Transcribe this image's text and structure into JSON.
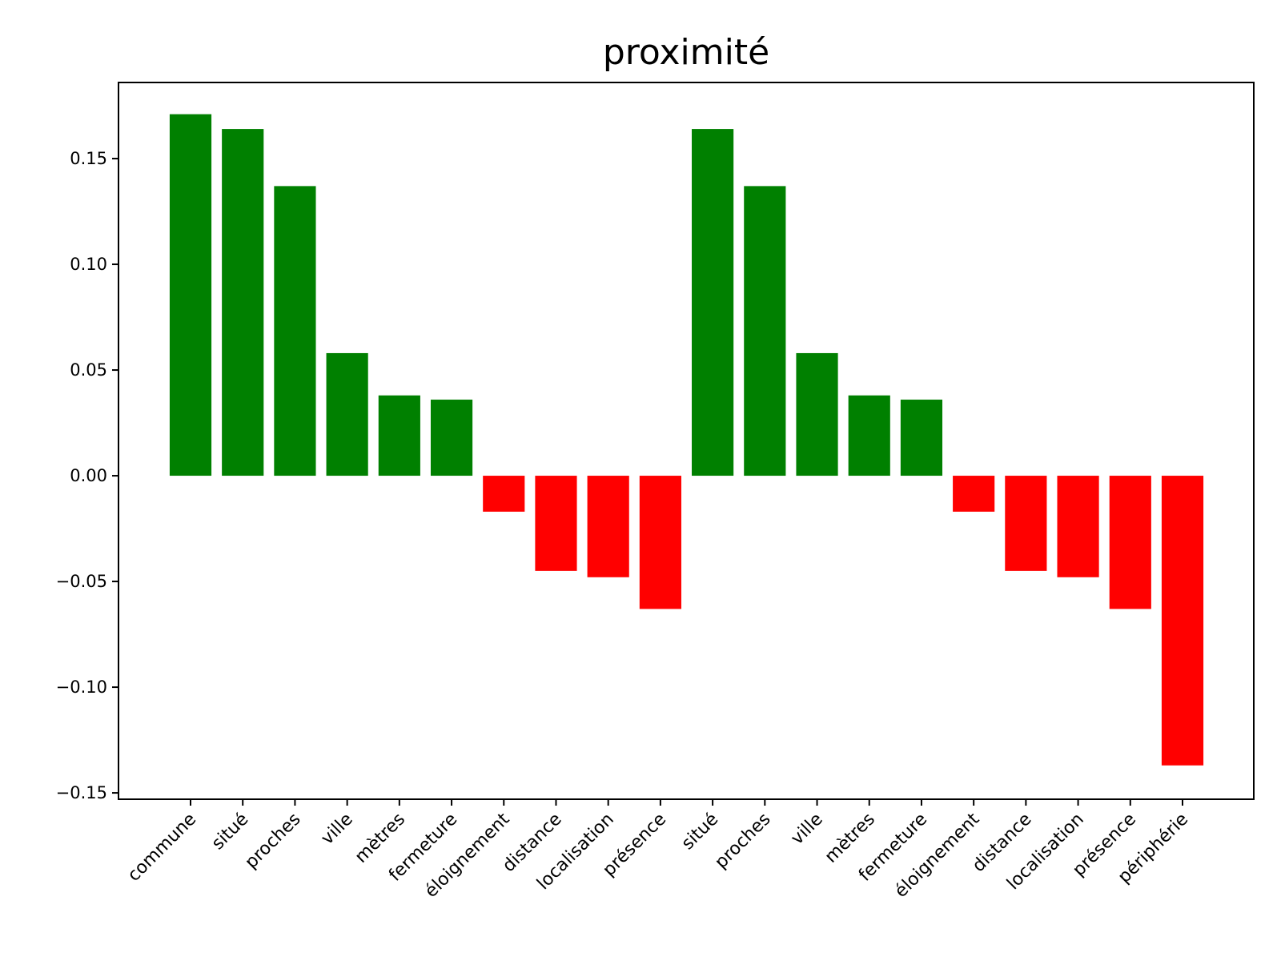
{
  "chart_data": {
    "type": "bar",
    "title": "proximité",
    "xlabel": "",
    "ylabel": "",
    "ylim": [
      -0.153,
      0.186
    ],
    "yticks": [
      -0.15,
      -0.1,
      -0.05,
      0.0,
      0.05,
      0.1,
      0.15
    ],
    "ytick_labels": [
      "−0.15",
      "−0.10",
      "−0.05",
      "0.00",
      "0.05",
      "0.10",
      "0.15"
    ],
    "grid": false,
    "colors": {
      "positive": "#008000",
      "negative": "#ff0000"
    },
    "categories": [
      "commune",
      "situé",
      "proches",
      "ville",
      "mètres",
      "fermeture",
      "éloignement",
      "distance",
      "localisation",
      "présence",
      "situé",
      "proches",
      "ville",
      "mètres",
      "fermeture",
      "éloignement",
      "distance",
      "localisation",
      "présence",
      "périphérie"
    ],
    "values": [
      0.171,
      0.164,
      0.137,
      0.058,
      0.038,
      0.036,
      -0.017,
      -0.045,
      -0.048,
      -0.063,
      0.164,
      0.137,
      0.058,
      0.038,
      0.036,
      -0.017,
      -0.045,
      -0.048,
      -0.063,
      -0.137
    ]
  }
}
